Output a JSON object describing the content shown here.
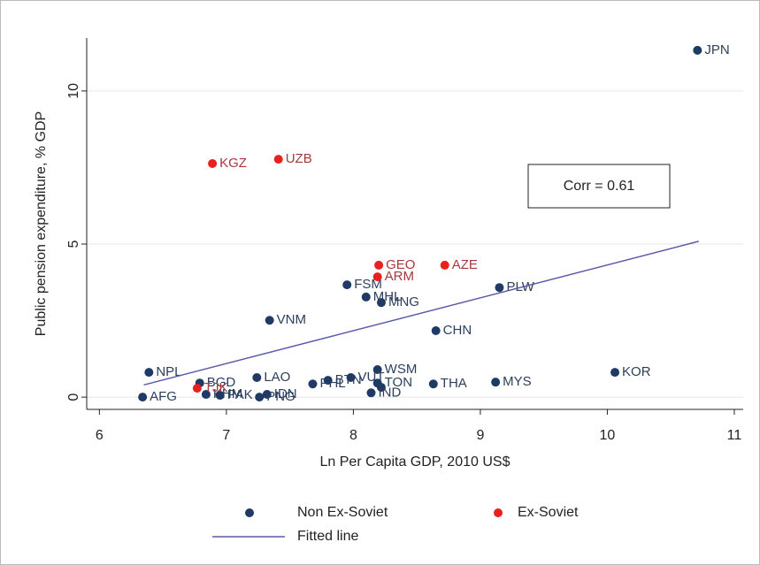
{
  "chart_data": {
    "type": "scatter",
    "x_label": "Ln Per Capita GDP, 2010 US$",
    "y_label": "Public pension expenditure, % GDP",
    "annotation": "Corr = 0.61",
    "xlim": [
      5.9,
      11.07
    ],
    "ylim": [
      -0.4,
      11.73
    ],
    "xticks": [
      6,
      7,
      8,
      9,
      10,
      11
    ],
    "yticks": [
      0,
      5,
      10
    ],
    "grid": true,
    "series": [
      {
        "name": "Non Ex-Soviet",
        "color": "#1f3a64",
        "label_color": "#2b3f5c",
        "labels": [
          "JPN",
          "FSM",
          "MHL",
          "MNG",
          "PLW",
          "VNM",
          "CHN",
          "NPL",
          "KOR",
          "WSM",
          "LAO",
          "BGD",
          "KHM",
          "PAK",
          "IDN",
          "PNG",
          "AFG",
          "PHL",
          "BTN",
          "VUT",
          "TON",
          null,
          "IND",
          "THA",
          "MYS"
        ],
        "x": [
          10.71,
          7.95,
          8.1,
          8.22,
          9.15,
          7.34,
          8.65,
          6.39,
          10.06,
          8.19,
          7.24,
          6.79,
          6.84,
          6.95,
          7.32,
          7.26,
          6.34,
          7.68,
          7.8,
          7.98,
          8.19,
          8.22,
          8.14,
          8.63,
          9.12
        ],
        "values": [
          11.33,
          3.67,
          3.27,
          3.09,
          3.58,
          2.51,
          2.17,
          0.81,
          0.81,
          0.9,
          0.64,
          0.46,
          0.09,
          0.06,
          0.09,
          0.0,
          0.0,
          0.43,
          0.55,
          0.64,
          0.46,
          0.32,
          0.14,
          0.43,
          0.49
        ]
      },
      {
        "name": "Ex-Soviet",
        "color": "#e8201e",
        "label_color": "#a8383a",
        "labels": [
          "KGZ",
          "UZB",
          "GEO",
          "AZE",
          "ARM",
          "TJK"
        ],
        "x": [
          6.89,
          7.41,
          8.2,
          8.72,
          8.19,
          6.77
        ],
        "values": [
          7.63,
          7.77,
          4.31,
          4.31,
          3.93,
          0.29
        ]
      },
      {
        "name": "Fitted line",
        "type": "line",
        "color": "#5a5aa8",
        "x": [
          6.35,
          10.72
        ],
        "values": [
          0.4,
          5.09
        ]
      }
    ]
  }
}
